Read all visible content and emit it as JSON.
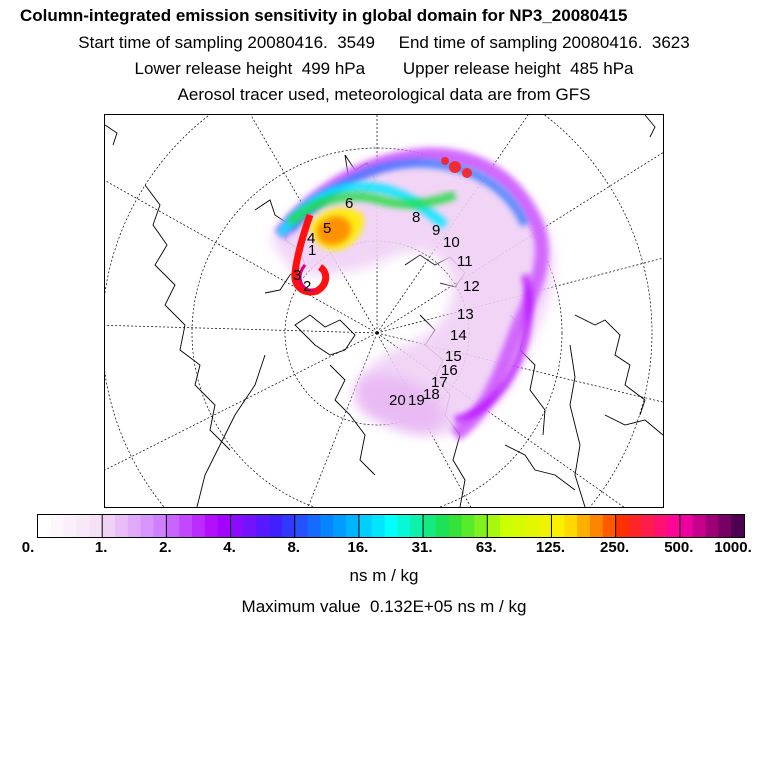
{
  "chart_data": {
    "type": "heatmap",
    "title": "Column-integrated emission sensitivity in global domain for NP3_20080415",
    "subtitle_lines": [
      "Start time of sampling 20080416.  3549     End time of sampling 20080416.  3623",
      "Lower release height  499 hPa        Upper release height  485 hPa",
      "Aerosol tracer used, meteorological data are from GFS"
    ],
    "projection": "north polar stereographic",
    "colorbar": {
      "ticks": [
        "0.",
        "1.",
        "2.",
        "4.",
        "8.",
        "16.",
        "31.",
        "63.",
        "125.",
        "250.",
        "500.",
        "1000."
      ],
      "unit_label": "ns m / kg"
    },
    "max_value_label": "Maximum value  0.132E+05 ns m / kg",
    "trajectory_labels": [
      "1",
      "2",
      "3",
      "4",
      "5",
      "6",
      "8",
      "9",
      "10",
      "11",
      "12",
      "13",
      "14",
      "15",
      "16",
      "17",
      "18",
      "19",
      "20"
    ],
    "colors": {
      "low": "#f4dcf4",
      "purple": "#b000ff",
      "blue": "#2040ff",
      "cyan": "#00ffff",
      "green": "#20e040",
      "yellow": "#ffff00",
      "orange": "#ff9900",
      "red": "#ff0000",
      "magenta": "#ff00aa"
    }
  }
}
